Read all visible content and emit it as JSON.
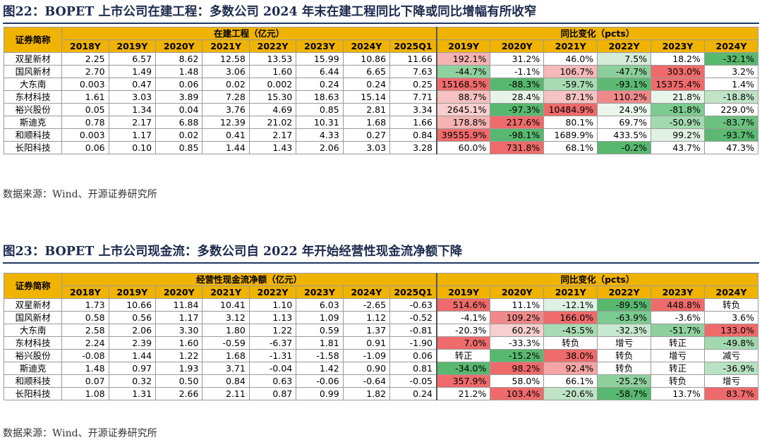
{
  "figures": [
    {
      "title": "图22：BOPET 上市公司在建工程：多数公司 2024 年末在建工程同比下降或同比增幅有所收窄",
      "corner_label": "证券简称",
      "group_left": "在建工程（亿元）",
      "group_right": "同比变化（pcts）",
      "years_left": [
        "2018Y",
        "2019Y",
        "2020Y",
        "2021Y",
        "2022Y",
        "2023Y",
        "2024Y",
        "2025Q1"
      ],
      "years_right": [
        "2019Y",
        "2020Y",
        "2021Y",
        "2022Y",
        "2023Y",
        "2024Y"
      ],
      "rows": [
        {
          "name": "双星新材",
          "values": [
            "2.25",
            "6.57",
            "8.62",
            "12.58",
            "13.53",
            "15.99",
            "10.86",
            "11.66"
          ],
          "yoy": [
            "192.1%",
            "31.2%",
            "46.0%",
            "7.5%",
            "18.2%",
            "-32.1%"
          ],
          "colors": [
            "#f5b3b3",
            "#ffffff",
            "#ffffff",
            "#d4ecd8",
            "#ffffff",
            "#59b86f"
          ]
        },
        {
          "name": "国风新材",
          "values": [
            "2.70",
            "1.49",
            "1.48",
            "3.06",
            "1.60",
            "6.44",
            "6.65",
            "7.63"
          ],
          "yoy": [
            "-44.7%",
            "-1.1%",
            "106.7%",
            "-47.7%",
            "303.0%",
            "3.2%"
          ],
          "colors": [
            "#8fd19e",
            "#ffffff",
            "#f5b9b9",
            "#8ccf9b",
            "#ef6b6b",
            "#ffffff"
          ]
        },
        {
          "name": "大东南",
          "values": [
            "0.003",
            "0.47",
            "0.06",
            "0.02",
            "0.002",
            "0.24",
            "0.24",
            "0.25"
          ],
          "yoy": [
            "15168.5%",
            "-88.3%",
            "-59.7%",
            "-93.1%",
            "15375.4%",
            "1.4%"
          ],
          "colors": [
            "#ef6b6b",
            "#59b86f",
            "#a8dbb3",
            "#5cb972",
            "#ef6b6b",
            "#ffffff"
          ]
        },
        {
          "name": "东材科技",
          "values": [
            "1.61",
            "3.03",
            "3.89",
            "7.28",
            "15.30",
            "18.63",
            "15.14",
            "7.71"
          ],
          "yoy": [
            "88.7%",
            "28.4%",
            "87.1%",
            "110.2%",
            "21.8%",
            "-18.8%"
          ],
          "colors": [
            "#f5c1c1",
            "#e6f4e8",
            "#f5c3c3",
            "#f08a8a",
            "#e8f5ea",
            "#bfe4c6"
          ]
        },
        {
          "name": "裕兴股份",
          "values": [
            "0.05",
            "1.34",
            "0.04",
            "3.76",
            "4.69",
            "0.85",
            "2.81",
            "3.34"
          ],
          "yoy": [
            "2645.1%",
            "-97.3%",
            "10484.9%",
            "24.9%",
            "-81.8%",
            "229.0%"
          ],
          "colors": [
            "#f8cfcf",
            "#59b86f",
            "#ef6b6b",
            "#eaf6ec",
            "#7ccb90",
            "#ffffff"
          ]
        },
        {
          "name": "斯迪克",
          "values": [
            "0.78",
            "2.17",
            "6.88",
            "12.39",
            "21.02",
            "10.31",
            "1.68",
            "1.66"
          ],
          "yoy": [
            "178.8%",
            "217.6%",
            "80.1%",
            "69.7%",
            "-50.9%",
            "-83.7%"
          ],
          "colors": [
            "#f5b3b3",
            "#ef6b6b",
            "#ffffff",
            "#ffffff",
            "#a3d9af",
            "#6bc180"
          ]
        },
        {
          "name": "和顺科技",
          "values": [
            "0.003",
            "1.17",
            "0.02",
            "0.41",
            "2.17",
            "4.33",
            "0.27",
            "0.84"
          ],
          "yoy": [
            "39555.9%",
            "-98.1%",
            "1689.9%",
            "433.5%",
            "99.2%",
            "-93.7%"
          ],
          "colors": [
            "#ef6b6b",
            "#59b86f",
            "#ffffff",
            "#ffffff",
            "#dff1e2",
            "#5cb972"
          ]
        },
        {
          "name": "长阳科技",
          "values": [
            "0.06",
            "0.10",
            "0.85",
            "1.44",
            "1.43",
            "2.06",
            "3.03",
            "3.28"
          ],
          "yoy": [
            "60.0%",
            "731.8%",
            "68.1%",
            "-0.2%",
            "43.7%",
            "47.3%"
          ],
          "colors": [
            "#ffffff",
            "#ef6b6b",
            "#ffffff",
            "#59b86f",
            "#ffffff",
            "#ffffff"
          ]
        }
      ],
      "source": "数据来源：Wind、开源证券研究所"
    },
    {
      "title": "图23：BOPET 上市公司现金流：多数公司自 2022 年开始经营性现金流净额下降",
      "corner_label": "证券简称",
      "group_left": "经营性现金流净额（亿元）",
      "group_right": "同比变化（pcts）",
      "years_left": [
        "2018Y",
        "2019Y",
        "2020Y",
        "2021Y",
        "2022Y",
        "2023Y",
        "2024Y",
        "2025Q1"
      ],
      "years_right": [
        "2019Y",
        "2020Y",
        "2021Y",
        "2022Y",
        "2023Y",
        "2024Y"
      ],
      "rows": [
        {
          "name": "双星新材",
          "values": [
            "1.73",
            "10.66",
            "11.84",
            "10.41",
            "1.10",
            "6.03",
            "-2.65",
            "-0.63"
          ],
          "yoy": [
            "514.6%",
            "11.1%",
            "-12.1%",
            "-89.5%",
            "448.8%",
            "转负"
          ],
          "colors": [
            "#ef6b6b",
            "#ffffff",
            "#dff1e2",
            "#59b86f",
            "#ef6b6b",
            "#ffffff"
          ]
        },
        {
          "name": "国风新材",
          "values": [
            "0.58",
            "0.56",
            "1.17",
            "3.12",
            "1.13",
            "1.09",
            "1.12",
            "-0.52"
          ],
          "yoy": [
            "-4.1%",
            "109.2%",
            "166.0%",
            "-63.9%",
            "-3.6%",
            "3.6%"
          ],
          "colors": [
            "#ffffff",
            "#f08a8a",
            "#ef6b6b",
            "#7ccb90",
            "#ffffff",
            "#ffffff"
          ]
        },
        {
          "name": "大东南",
          "values": [
            "2.58",
            "2.06",
            "3.30",
            "1.80",
            "1.22",
            "0.59",
            "1.37",
            "-0.81"
          ],
          "yoy": [
            "-20.3%",
            "60.2%",
            "-45.5%",
            "-32.3%",
            "-51.7%",
            "133.0%"
          ],
          "colors": [
            "#ffffff",
            "#f8cfcf",
            "#a8dbb3",
            "#c8e8cf",
            "#8fd19e",
            "#ef6b6b"
          ]
        },
        {
          "name": "东材科技",
          "values": [
            "2.24",
            "2.39",
            "1.60",
            "-0.59",
            "-6.37",
            "1.81",
            "0.91",
            "-1.90"
          ],
          "yoy": [
            "7.0%",
            "-33.3%",
            "转负",
            "增亏",
            "转正",
            "-49.8%"
          ],
          "colors": [
            "#ef6b6b",
            "#ffffff",
            "#ffffff",
            "#ffffff",
            "#ffffff",
            "#a3d9af"
          ]
        },
        {
          "name": "裕兴股份",
          "values": [
            "-0.08",
            "1.44",
            "1.22",
            "1.68",
            "-1.31",
            "-1.58",
            "-1.09",
            "0.06"
          ],
          "yoy": [
            "转正",
            "-15.2%",
            "38.0%",
            "转负",
            "增亏",
            "减亏"
          ],
          "colors": [
            "#ffffff",
            "#59b86f",
            "#ef6b6b",
            "#ffffff",
            "#ffffff",
            "#ffffff"
          ]
        },
        {
          "name": "斯迪克",
          "values": [
            "1.48",
            "0.97",
            "1.93",
            "3.71",
            "-0.04",
            "1.42",
            "0.90",
            "0.81"
          ],
          "yoy": [
            "-34.0%",
            "98.2%",
            "92.4%",
            "转负",
            "转正",
            "-36.9%"
          ],
          "colors": [
            "#59b86f",
            "#ef6b6b",
            "#f5a5a5",
            "#ffffff",
            "#ffffff",
            "#b8e2c1"
          ]
        },
        {
          "name": "和顺科技",
          "values": [
            "0.07",
            "0.32",
            "0.50",
            "0.84",
            "0.63",
            "-0.06",
            "-0.64",
            "-0.05"
          ],
          "yoy": [
            "357.9%",
            "58.0%",
            "66.1%",
            "-25.2%",
            "转负",
            "增亏"
          ],
          "colors": [
            "#ef6b6b",
            "#ffffff",
            "#ffffff",
            "#8fd19e",
            "#ffffff",
            "#ffffff"
          ]
        },
        {
          "name": "长阳科技",
          "values": [
            "1.08",
            "1.31",
            "2.66",
            "2.11",
            "0.87",
            "0.99",
            "1.82",
            "0.24"
          ],
          "yoy": [
            "21.2%",
            "103.4%",
            "-20.6%",
            "-58.7%",
            "13.7%",
            "83.7%"
          ],
          "colors": [
            "#ffffff",
            "#ef6b6b",
            "#bfe4c6",
            "#59b86f",
            "#ffffff",
            "#ef6b6b"
          ]
        }
      ],
      "source": "数据来源：Wind、开源证券研究所"
    }
  ]
}
